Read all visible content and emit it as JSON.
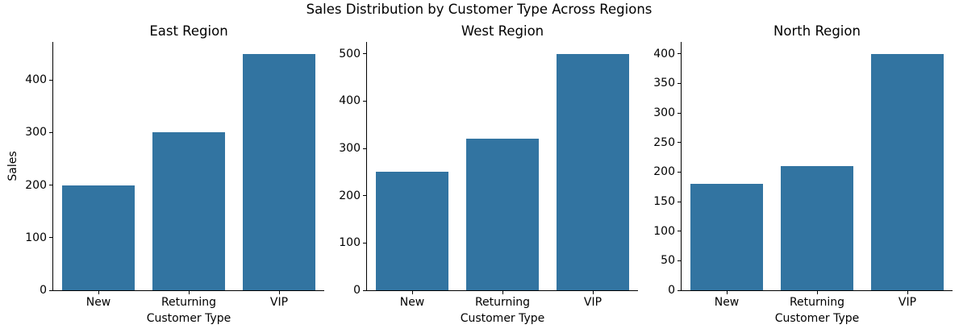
{
  "figure": {
    "background": "#ffffff",
    "text_color": "#000000"
  },
  "chart_data": {
    "type": "bar",
    "title": "Sales Distribution by Customer Type Across Regions",
    "layout": "1 row x 3 subplot columns, no grid, no legend, top/right spines removed",
    "categories": [
      "New",
      "Returning",
      "VIP"
    ],
    "xlabel": "Customer Type",
    "ylabel": "Sales",
    "bar_color": "#3274a1",
    "grid": false,
    "legend": false,
    "subplots": [
      {
        "title": "East Region",
        "values": [
          200,
          300,
          450
        ],
        "yticks": [
          0,
          100,
          200,
          300,
          400
        ],
        "ylim": [
          0,
          472.5
        ]
      },
      {
        "title": "West Region",
        "values": [
          250,
          320,
          500
        ],
        "yticks": [
          0,
          100,
          200,
          300,
          400,
          500
        ],
        "ylim": [
          0,
          525
        ]
      },
      {
        "title": "North Region",
        "values": [
          180,
          210,
          400
        ],
        "yticks": [
          0,
          50,
          100,
          150,
          200,
          250,
          300,
          350,
          400
        ],
        "ylim": [
          0,
          420
        ]
      }
    ]
  }
}
